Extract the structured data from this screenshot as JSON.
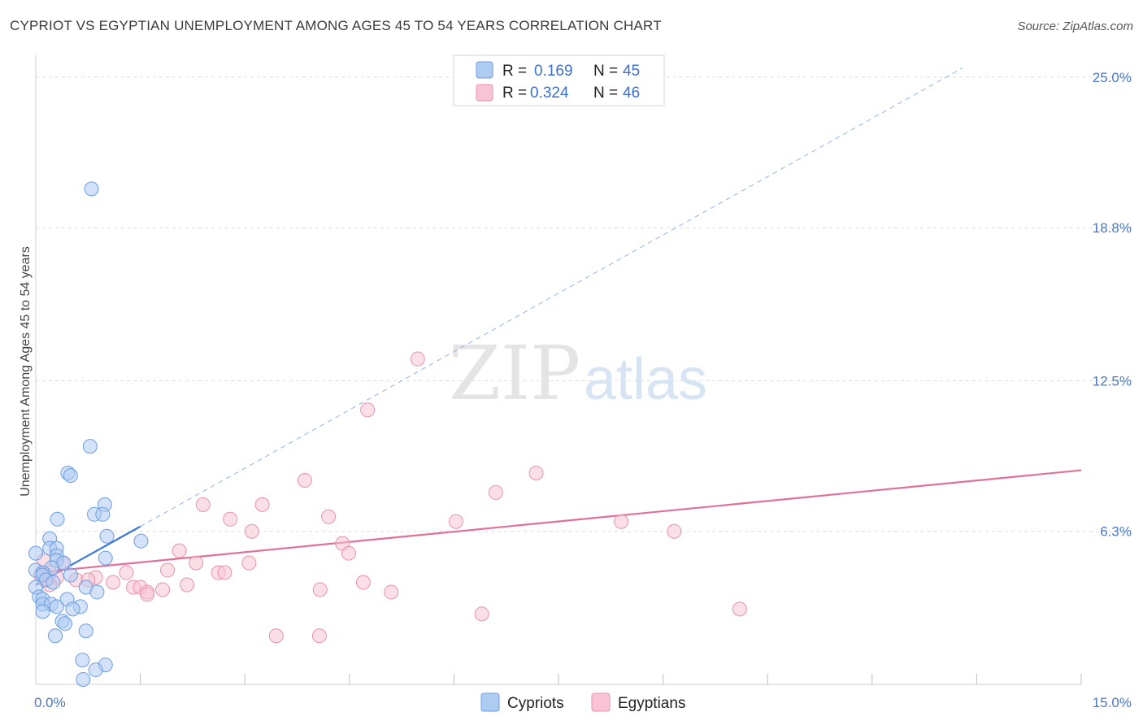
{
  "title": "CYPRIOT VS EGYPTIAN UNEMPLOYMENT AMONG AGES 45 TO 54 YEARS CORRELATION CHART",
  "source": "Source: ZipAtlas.com",
  "watermark": {
    "zip": "ZIP",
    "atlas": "atlas"
  },
  "legend": {
    "r_label": "R =",
    "n_label": "N =",
    "series": [
      {
        "name": "Cypriots",
        "r": "0.169",
        "n": "45",
        "fill": "#aecbf2",
        "stroke": "#6d9ee0"
      },
      {
        "name": "Egyptians",
        "r": "0.324",
        "n": "46",
        "fill": "#f8c4d4",
        "stroke": "#e892ad"
      }
    ]
  },
  "chart_data": {
    "type": "scatter",
    "title": "CYPRIOT VS EGYPTIAN UNEMPLOYMENT AMONG AGES 45 TO 54 YEARS CORRELATION CHART",
    "xlabel": "",
    "ylabel": "Unemployment Among Ages 45 to 54 years",
    "xlim": [
      0,
      15
    ],
    "ylim": [
      0,
      25.9
    ],
    "x_tick_labels": [
      "0.0%",
      "15.0%"
    ],
    "y_ticks": [
      6.3,
      12.5,
      18.8,
      25.0
    ],
    "y_tick_labels": [
      "6.3%",
      "12.5%",
      "18.8%",
      "25.0%"
    ],
    "series": [
      {
        "name": "Cypriots",
        "color": "#6d9ee0",
        "points": [
          [
            0.8,
            20.4
          ],
          [
            0.78,
            9.8
          ],
          [
            0.46,
            8.7
          ],
          [
            0.5,
            8.6
          ],
          [
            0.99,
            7.4
          ],
          [
            0.84,
            7.0
          ],
          [
            0.96,
            7.0
          ],
          [
            0.31,
            6.8
          ],
          [
            0.2,
            6.0
          ],
          [
            1.02,
            6.1
          ],
          [
            1.51,
            5.9
          ],
          [
            0.2,
            5.6
          ],
          [
            0.0,
            5.4
          ],
          [
            0.3,
            5.6
          ],
          [
            0.3,
            5.3
          ],
          [
            0.3,
            5.1
          ],
          [
            1.0,
            5.2
          ],
          [
            0.4,
            5.0
          ],
          [
            0.23,
            4.8
          ],
          [
            0.0,
            4.7
          ],
          [
            0.1,
            4.6
          ],
          [
            0.1,
            4.5
          ],
          [
            0.5,
            4.5
          ],
          [
            0.15,
            4.3
          ],
          [
            0.25,
            4.2
          ],
          [
            0.0,
            4.0
          ],
          [
            0.72,
            4.0
          ],
          [
            0.88,
            3.8
          ],
          [
            0.05,
            3.6
          ],
          [
            0.1,
            3.5
          ],
          [
            0.45,
            3.5
          ],
          [
            0.1,
            3.3
          ],
          [
            0.22,
            3.3
          ],
          [
            0.3,
            3.2
          ],
          [
            0.64,
            3.2
          ],
          [
            0.53,
            3.1
          ],
          [
            0.1,
            3.0
          ],
          [
            0.38,
            2.6
          ],
          [
            0.42,
            2.5
          ],
          [
            0.72,
            2.2
          ],
          [
            0.28,
            2.0
          ],
          [
            0.67,
            1.0
          ],
          [
            1.0,
            0.8
          ],
          [
            0.86,
            0.6
          ],
          [
            0.68,
            0.2
          ]
        ]
      },
      {
        "name": "Egyptians",
        "color": "#e892ad",
        "points": [
          [
            5.48,
            13.4
          ],
          [
            4.76,
            11.3
          ],
          [
            7.18,
            8.7
          ],
          [
            3.86,
            8.4
          ],
          [
            6.6,
            7.9
          ],
          [
            2.4,
            7.4
          ],
          [
            3.25,
            7.4
          ],
          [
            4.2,
            6.9
          ],
          [
            2.79,
            6.8
          ],
          [
            6.03,
            6.7
          ],
          [
            8.4,
            6.7
          ],
          [
            3.1,
            6.3
          ],
          [
            9.16,
            6.3
          ],
          [
            4.4,
            5.8
          ],
          [
            2.06,
            5.5
          ],
          [
            4.49,
            5.4
          ],
          [
            0.12,
            5.1
          ],
          [
            0.38,
            5.0
          ],
          [
            2.3,
            5.0
          ],
          [
            3.06,
            5.0
          ],
          [
            1.89,
            4.7
          ],
          [
            1.3,
            4.6
          ],
          [
            2.62,
            4.6
          ],
          [
            2.71,
            4.6
          ],
          [
            0.2,
            4.6
          ],
          [
            0.07,
            4.5
          ],
          [
            0.3,
            4.4
          ],
          [
            0.86,
            4.4
          ],
          [
            0.58,
            4.3
          ],
          [
            0.13,
            4.3
          ],
          [
            0.75,
            4.3
          ],
          [
            1.11,
            4.2
          ],
          [
            4.7,
            4.2
          ],
          [
            0.2,
            4.1
          ],
          [
            2.17,
            4.1
          ],
          [
            1.4,
            4.0
          ],
          [
            1.5,
            4.0
          ],
          [
            1.6,
            3.8
          ],
          [
            1.82,
            3.9
          ],
          [
            4.08,
            3.9
          ],
          [
            5.1,
            3.8
          ],
          [
            1.6,
            3.7
          ],
          [
            10.1,
            3.1
          ],
          [
            6.4,
            2.9
          ],
          [
            3.45,
            2.0
          ],
          [
            4.07,
            2.0
          ]
        ]
      }
    ],
    "trendlines": [
      {
        "series": "Cypriots",
        "solid_x": [
          0,
          1.5
        ],
        "dashed_x": [
          1.5,
          13.3
        ],
        "y_at_x0": 4.1,
        "slope": 1.6
      },
      {
        "series": "Egyptians",
        "solid_x": [
          0,
          15
        ],
        "y_at_x0": 4.6,
        "slope": 0.281
      }
    ]
  }
}
